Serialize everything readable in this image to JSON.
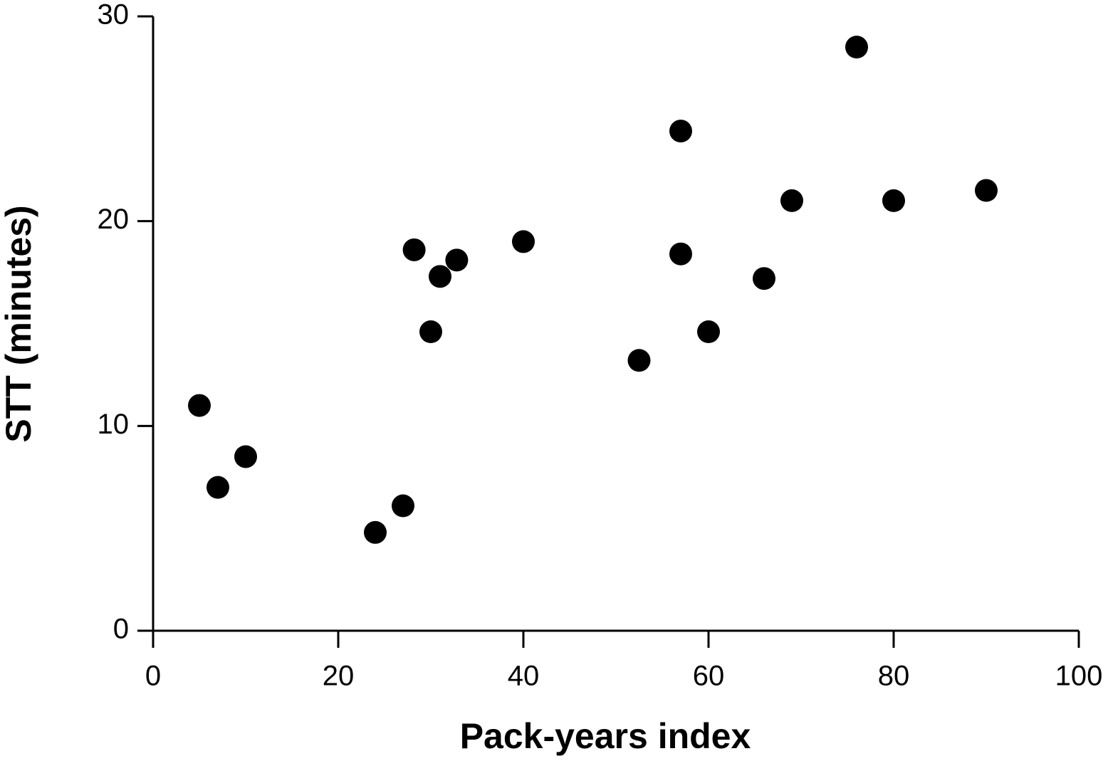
{
  "chart_data": {
    "type": "scatter",
    "x_label": "Pack-years index",
    "y_label": "STT (minutes)",
    "x": [
      5,
      7,
      10,
      24,
      27,
      28.2,
      31,
      32.8,
      30,
      40,
      52.5,
      57,
      57,
      60,
      66,
      69,
      76,
      80,
      90
    ],
    "values": [
      11,
      7,
      8.5,
      4.8,
      6.1,
      18.6,
      17.3,
      18.1,
      14.6,
      19.0,
      13.2,
      24.4,
      18.4,
      14.6,
      17.2,
      21.0,
      28.5,
      21.0,
      21.5
    ],
    "color": "#000000",
    "xlim": [
      0,
      100
    ],
    "xticks": [
      0,
      20,
      40,
      60,
      80,
      100
    ],
    "ylim": [
      0,
      30
    ],
    "yticks": [
      0,
      10,
      20,
      30
    ],
    "grid": false
  }
}
